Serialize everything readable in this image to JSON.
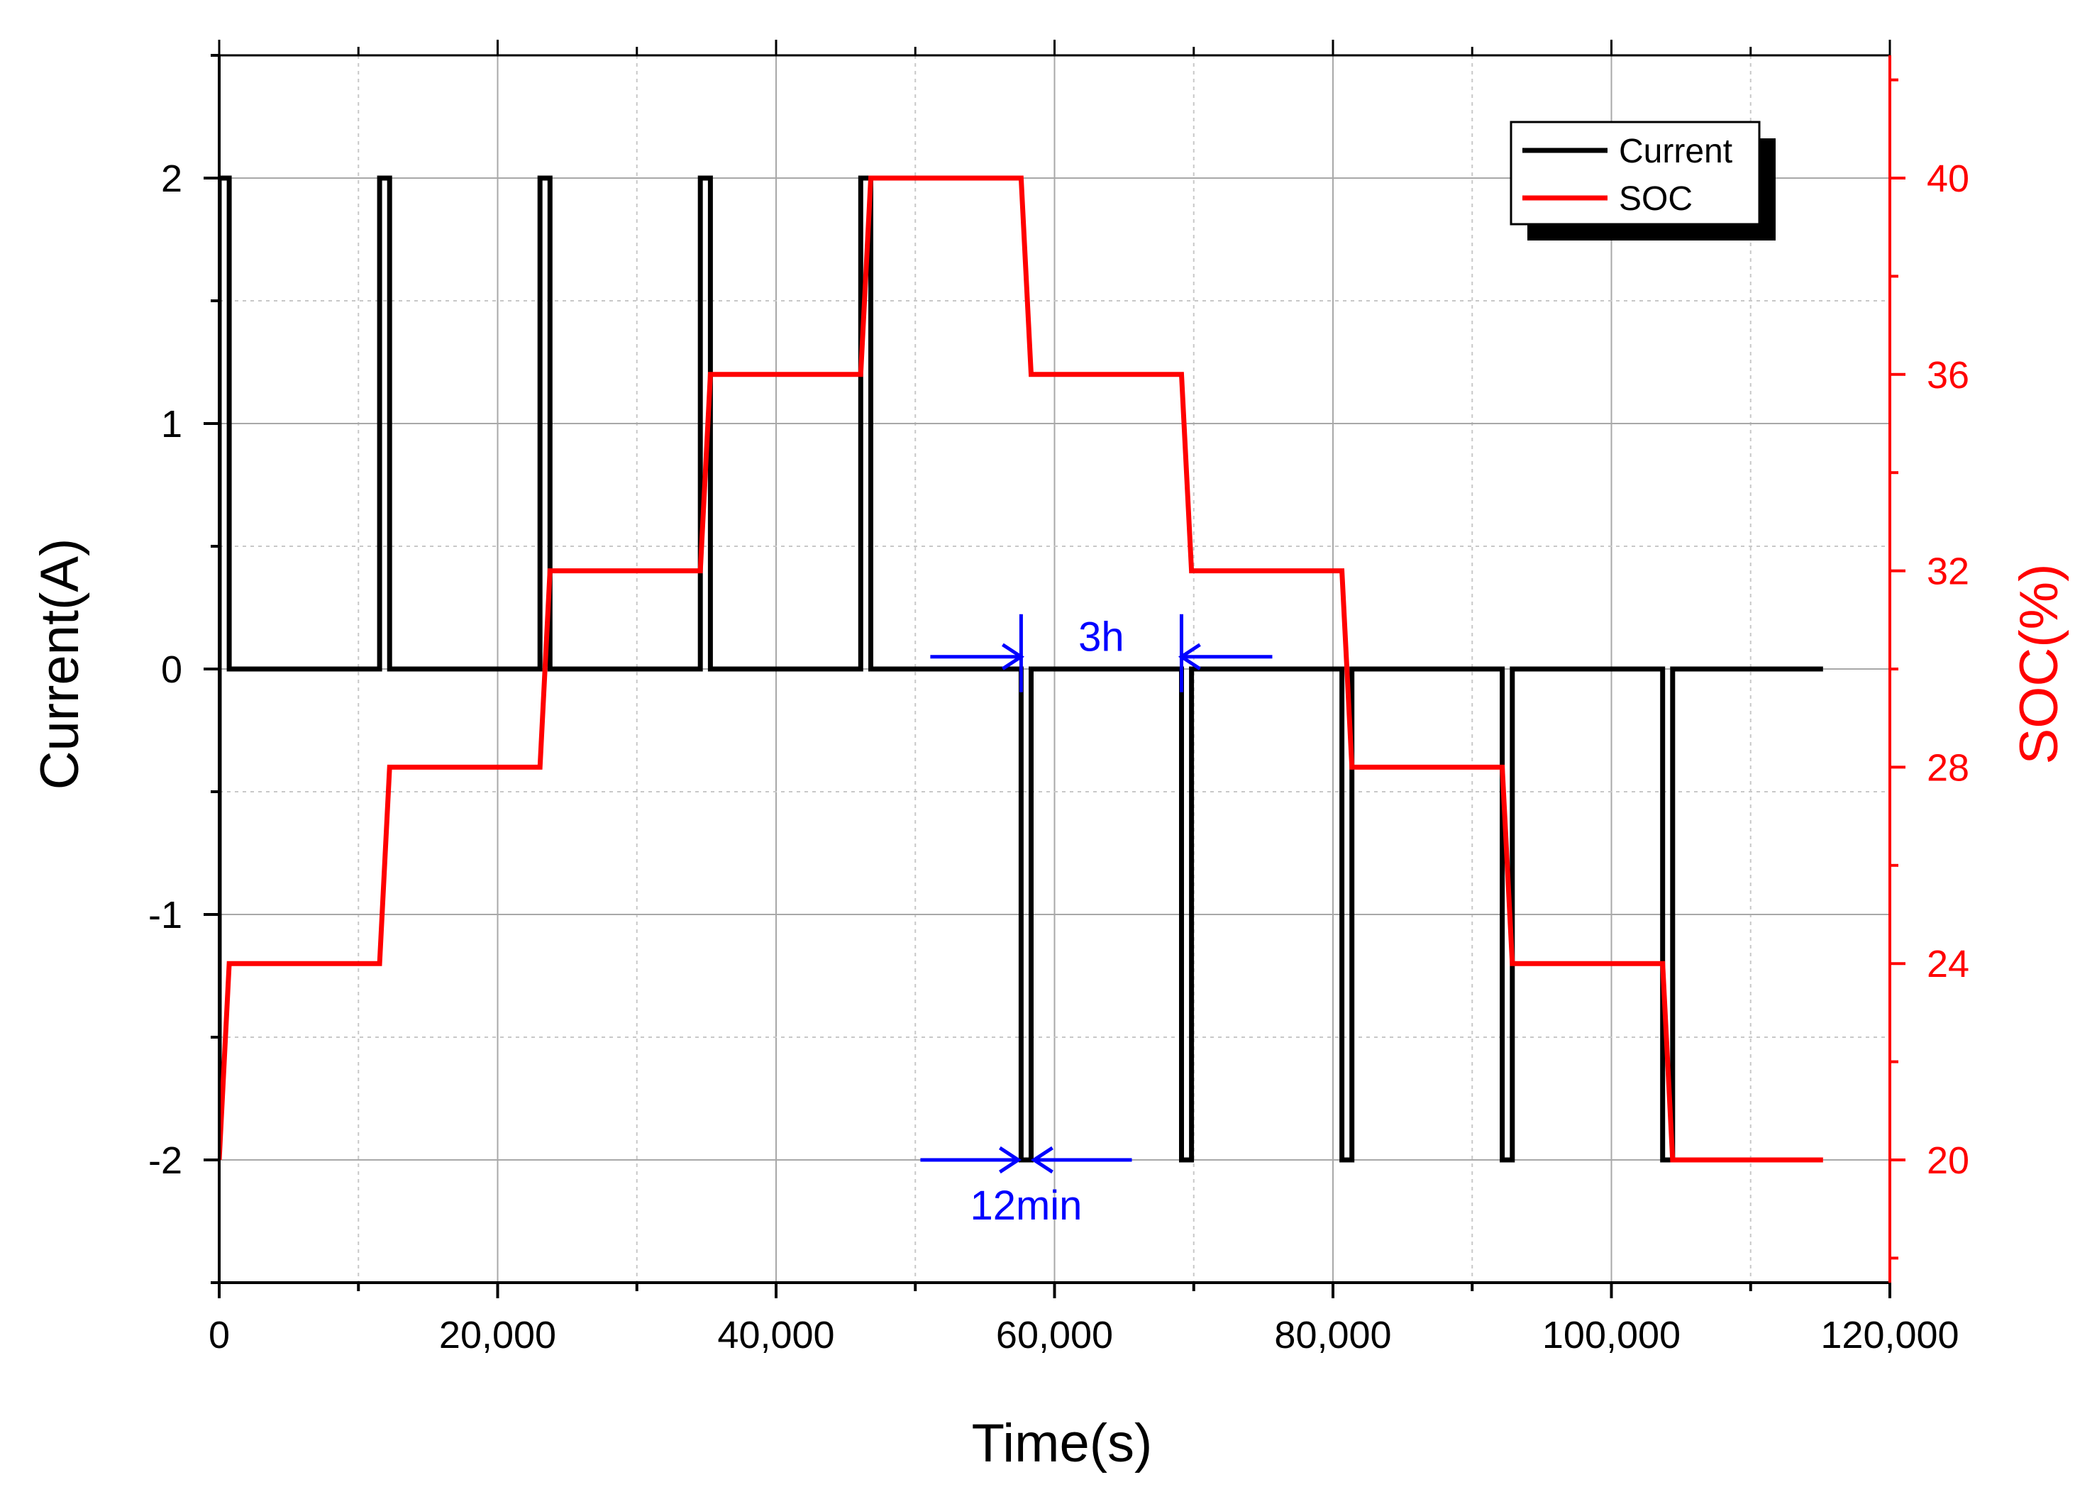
{
  "chart_data": {
    "type": "line",
    "xlabel": "Time(s)",
    "ylabel": "Current(A)",
    "y2label": "SOC(%)",
    "xlim": [
      0,
      120000
    ],
    "ylim": [
      -2.5,
      2.5
    ],
    "y2lim": [
      17.5,
      42.5
    ],
    "xticks": [
      0,
      20000,
      40000,
      60000,
      80000,
      100000,
      120000
    ],
    "xtick_labels": [
      "0",
      "20,000",
      "40,000",
      "60,000",
      "80,000",
      "100,000",
      "120,000"
    ],
    "yticks": [
      -2,
      -1,
      0,
      1,
      2
    ],
    "ytick_labels": [
      "-2",
      "-1",
      "0",
      "1",
      "2"
    ],
    "y2ticks": [
      20,
      24,
      28,
      32,
      36,
      40
    ],
    "y2tick_labels": [
      "20",
      "24",
      "28",
      "32",
      "36",
      "40"
    ],
    "grid": true,
    "legend_position": "top-right",
    "colors": {
      "current": "#000000",
      "soc": "#ff0000",
      "annotation": "#0000ff"
    },
    "series": [
      {
        "name": "Current",
        "axis": "left",
        "x": [
          0,
          0,
          720,
          720,
          11520,
          11520,
          12240,
          12240,
          23040,
          23040,
          23760,
          23760,
          34560,
          34560,
          35280,
          35280,
          46080,
          46080,
          46800,
          46800,
          57600,
          57600,
          58320,
          58320,
          69120,
          69120,
          69840,
          69840,
          80640,
          80640,
          81360,
          81360,
          92160,
          92160,
          92880,
          92880,
          103680,
          103680,
          104400,
          104400,
          115200
        ],
        "y": [
          -2,
          2,
          2,
          0,
          0,
          2,
          2,
          0,
          0,
          2,
          2,
          0,
          0,
          2,
          2,
          0,
          0,
          2,
          2,
          0,
          0,
          -2,
          -2,
          0,
          0,
          -2,
          -2,
          0,
          0,
          -2,
          -2,
          0,
          0,
          -2,
          -2,
          0,
          0,
          -2,
          -2,
          0,
          0
        ]
      },
      {
        "name": "SOC",
        "axis": "right",
        "x": [
          0,
          720,
          11520,
          12240,
          23040,
          23760,
          34560,
          35280,
          46080,
          46800,
          57600,
          58320,
          69120,
          69840,
          80640,
          81360,
          92160,
          92880,
          103680,
          104400,
          115200
        ],
        "y": [
          20,
          24,
          24,
          28,
          28,
          32,
          32,
          36,
          36,
          40,
          40,
          36,
          36,
          32,
          32,
          28,
          28,
          24,
          24,
          20,
          20
        ]
      }
    ],
    "annotations": [
      {
        "text": "3h",
        "from_x": 57600,
        "to_x": 69120,
        "y": 0.05
      },
      {
        "text": "12min",
        "from_x": 57600,
        "to_x": 58320,
        "y": -2
      }
    ]
  }
}
